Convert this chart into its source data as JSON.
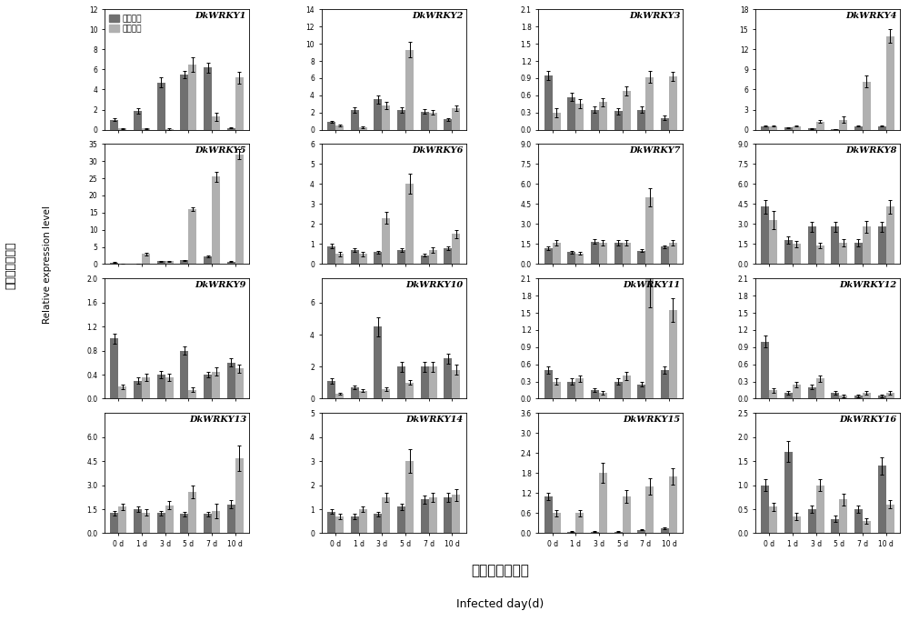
{
  "genes": [
    "DkWRKY1",
    "DkWRKY2",
    "DkWRKY3",
    "DkWRKY4",
    "DkWRKY5",
    "DkWRKY6",
    "DkWRKY7",
    "DkWRKY8",
    "DkWRKY9",
    "DkWRKY10",
    "DkWRKY11",
    "DkWRKY12",
    "DkWRKY13",
    "DkWRKY14",
    "DkWRKY15",
    "DkWRKY16"
  ],
  "days": [
    "0 d",
    "1 d",
    "3 d",
    "5 d",
    "7 d",
    "10 d"
  ],
  "color_dark": "#707070",
  "color_light": "#b0b0b0",
  "legend_label_dark": "抗病尖柿",
  "legend_label_light": "富平尖柿",
  "ylabel_cn": "实时表达量水平",
  "ylabel_en": "Relative expression level",
  "xlabel_cn": "侵染天数（天）",
  "xlabel_en": "Infected day(d)",
  "data": {
    "DkWRKY1": {
      "dark": [
        1.0,
        1.85,
        4.7,
        5.5,
        6.2,
        0.15
      ],
      "dark_err": [
        0.1,
        0.25,
        0.5,
        0.4,
        0.5,
        0.05
      ],
      "light": [
        0.1,
        0.1,
        0.05,
        6.5,
        1.3,
        5.2
      ],
      "light_err": [
        0.05,
        0.05,
        0.05,
        0.7,
        0.4,
        0.6
      ],
      "ylim": [
        0,
        12
      ],
      "yticks": [
        0,
        2,
        4,
        6,
        8,
        10,
        12
      ]
    },
    "DkWRKY2": {
      "dark": [
        0.9,
        2.3,
        3.5,
        2.3,
        2.1,
        1.2
      ],
      "dark_err": [
        0.1,
        0.3,
        0.5,
        0.3,
        0.25,
        0.15
      ],
      "light": [
        0.5,
        0.3,
        2.8,
        9.3,
        2.0,
        2.5
      ],
      "light_err": [
        0.1,
        0.1,
        0.4,
        0.9,
        0.3,
        0.3
      ],
      "ylim": [
        0,
        14
      ],
      "yticks": [
        0,
        2,
        4,
        6,
        8,
        10,
        12,
        14
      ]
    },
    "DkWRKY3": {
      "dark": [
        0.95,
        0.57,
        0.35,
        0.32,
        0.35,
        0.2
      ],
      "dark_err": [
        0.08,
        0.07,
        0.05,
        0.05,
        0.05,
        0.04
      ],
      "light": [
        0.3,
        0.45,
        0.48,
        0.68,
        0.92,
        0.93
      ],
      "light_err": [
        0.08,
        0.08,
        0.07,
        0.08,
        0.1,
        0.08
      ],
      "ylim": [
        0,
        2.1
      ],
      "yticks": [
        0.0,
        0.3,
        0.6,
        0.9,
        1.2,
        1.5,
        1.8,
        2.1
      ]
    },
    "DkWRKY4": {
      "dark": [
        0.5,
        0.3,
        0.15,
        0.1,
        0.5,
        0.5
      ],
      "dark_err": [
        0.08,
        0.05,
        0.03,
        0.03,
        0.08,
        0.08
      ],
      "light": [
        0.5,
        0.5,
        1.2,
        1.5,
        7.2,
        14.0
      ],
      "light_err": [
        0.08,
        0.08,
        0.2,
        0.5,
        0.9,
        1.0
      ],
      "ylim": [
        0,
        18
      ],
      "yticks": [
        0,
        3,
        6,
        9,
        12,
        15,
        18
      ]
    },
    "DkWRKY5": {
      "dark": [
        0.5,
        0.1,
        0.8,
        1.1,
        2.2,
        0.7
      ],
      "dark_err": [
        0.08,
        0.03,
        0.1,
        0.15,
        0.25,
        0.1
      ],
      "light": [
        0.0,
        3.0,
        0.8,
        16.0,
        25.5,
        32.0
      ],
      "light_err": [
        0.05,
        0.4,
        0.12,
        0.6,
        1.5,
        1.5
      ],
      "ylim": [
        0,
        35
      ],
      "yticks": [
        0,
        5,
        10,
        15,
        20,
        25,
        30,
        35
      ]
    },
    "DkWRKY6": {
      "dark": [
        0.9,
        0.7,
        0.6,
        0.7,
        0.45,
        0.8
      ],
      "dark_err": [
        0.1,
        0.1,
        0.08,
        0.08,
        0.06,
        0.08
      ],
      "light": [
        0.5,
        0.5,
        2.3,
        4.0,
        0.7,
        1.5
      ],
      "light_err": [
        0.1,
        0.1,
        0.3,
        0.5,
        0.15,
        0.2
      ],
      "ylim": [
        0,
        6
      ],
      "yticks": [
        0,
        1,
        2,
        3,
        4,
        5,
        6
      ]
    },
    "DkWRKY7": {
      "dark": [
        1.2,
        0.9,
        1.7,
        1.6,
        1.0,
        1.3
      ],
      "dark_err": [
        0.12,
        0.1,
        0.2,
        0.18,
        0.1,
        0.12
      ],
      "light": [
        1.6,
        0.8,
        1.6,
        1.6,
        5.0,
        1.6
      ],
      "light_err": [
        0.18,
        0.1,
        0.18,
        0.18,
        0.7,
        0.18
      ],
      "ylim": [
        0,
        9.0
      ],
      "yticks": [
        0.0,
        1.5,
        3.0,
        4.5,
        6.0,
        7.5,
        9.0
      ]
    },
    "DkWRKY8": {
      "dark": [
        4.3,
        1.8,
        2.8,
        2.8,
        1.6,
        2.8
      ],
      "dark_err": [
        0.5,
        0.25,
        0.35,
        0.35,
        0.25,
        0.35
      ],
      "light": [
        3.3,
        1.5,
        1.4,
        1.6,
        2.8,
        4.3
      ],
      "light_err": [
        0.7,
        0.25,
        0.2,
        0.25,
        0.45,
        0.5
      ],
      "ylim": [
        0,
        9.0
      ],
      "yticks": [
        0.0,
        1.5,
        3.0,
        4.5,
        6.0,
        7.5,
        9.0
      ]
    },
    "DkWRKY9": {
      "dark": [
        1.0,
        0.3,
        0.4,
        0.8,
        0.4,
        0.6
      ],
      "dark_err": [
        0.08,
        0.05,
        0.06,
        0.07,
        0.05,
        0.07
      ],
      "light": [
        0.2,
        0.35,
        0.35,
        0.15,
        0.45,
        0.5
      ],
      "light_err": [
        0.04,
        0.06,
        0.06,
        0.04,
        0.07,
        0.07
      ],
      "ylim": [
        0,
        2.0
      ],
      "yticks": [
        0.0,
        0.4,
        0.8,
        1.2,
        1.6,
        2.0
      ]
    },
    "DkWRKY10": {
      "dark": [
        1.1,
        0.7,
        4.5,
        2.0,
        2.0,
        2.5
      ],
      "dark_err": [
        0.15,
        0.1,
        0.6,
        0.3,
        0.3,
        0.3
      ],
      "light": [
        0.3,
        0.5,
        0.6,
        1.0,
        2.0,
        1.8
      ],
      "light_err": [
        0.07,
        0.1,
        0.1,
        0.15,
        0.3,
        0.3
      ],
      "ylim": [
        0,
        7.5
      ],
      "yticks": [
        0,
        2,
        4,
        6
      ]
    },
    "DkWRKY11": {
      "dark": [
        0.5,
        0.3,
        0.15,
        0.3,
        0.25,
        0.5
      ],
      "dark_err": [
        0.07,
        0.05,
        0.03,
        0.05,
        0.04,
        0.07
      ],
      "light": [
        0.3,
        0.35,
        0.1,
        0.4,
        2.1,
        1.55
      ],
      "light_err": [
        0.06,
        0.06,
        0.03,
        0.07,
        0.5,
        0.2
      ],
      "ylim": [
        0,
        2.1
      ],
      "yticks": [
        0.0,
        0.3,
        0.6,
        0.9,
        1.2,
        1.5,
        1.8,
        2.1
      ]
    },
    "DkWRKY12": {
      "dark": [
        1.0,
        0.1,
        0.2,
        0.1,
        0.05,
        0.05
      ],
      "dark_err": [
        0.1,
        0.03,
        0.04,
        0.03,
        0.02,
        0.02
      ],
      "light": [
        0.15,
        0.25,
        0.35,
        0.05,
        0.1,
        0.1
      ],
      "light_err": [
        0.04,
        0.05,
        0.06,
        0.02,
        0.03,
        0.03
      ],
      "ylim": [
        0,
        2.1
      ],
      "yticks": [
        0.0,
        0.3,
        0.6,
        0.9,
        1.2,
        1.5,
        1.8,
        2.1
      ]
    },
    "DkWRKY13": {
      "dark": [
        1.25,
        1.5,
        1.25,
        1.2,
        1.2,
        1.8
      ],
      "dark_err": [
        0.15,
        0.18,
        0.15,
        0.15,
        0.15,
        0.25
      ],
      "light": [
        1.65,
        1.3,
        1.75,
        2.6,
        1.4,
        4.7
      ],
      "light_err": [
        0.18,
        0.18,
        0.25,
        0.4,
        0.45,
        0.8
      ],
      "ylim": [
        0,
        7.5
      ],
      "yticks": [
        0.0,
        1.5,
        3.0,
        4.5,
        6.0
      ]
    },
    "DkWRKY14": {
      "dark": [
        0.9,
        0.7,
        0.8,
        1.1,
        1.4,
        1.5
      ],
      "dark_err": [
        0.1,
        0.1,
        0.1,
        0.12,
        0.18,
        0.18
      ],
      "light": [
        0.7,
        1.0,
        1.5,
        3.0,
        1.5,
        1.6
      ],
      "light_err": [
        0.1,
        0.12,
        0.18,
        0.5,
        0.2,
        0.25
      ],
      "ylim": [
        0,
        5
      ],
      "yticks": [
        0,
        1,
        2,
        3,
        4,
        5
      ]
    },
    "DkWRKY15": {
      "dark": [
        1.1,
        0.05,
        0.05,
        0.05,
        0.1,
        0.15
      ],
      "dark_err": [
        0.12,
        0.01,
        0.01,
        0.01,
        0.02,
        0.03
      ],
      "light": [
        0.6,
        0.6,
        1.8,
        1.1,
        1.4,
        1.7
      ],
      "light_err": [
        0.1,
        0.1,
        0.3,
        0.2,
        0.25,
        0.25
      ],
      "ylim": [
        0,
        3.6
      ],
      "yticks": [
        0.0,
        0.6,
        1.2,
        1.8,
        2.4,
        3.0,
        3.6
      ]
    },
    "DkWRKY16": {
      "dark": [
        1.0,
        1.7,
        0.5,
        0.3,
        0.5,
        1.4
      ],
      "dark_err": [
        0.12,
        0.22,
        0.08,
        0.06,
        0.08,
        0.18
      ],
      "light": [
        0.55,
        0.35,
        1.0,
        0.7,
        0.25,
        0.6
      ],
      "light_err": [
        0.08,
        0.07,
        0.12,
        0.12,
        0.06,
        0.08
      ],
      "ylim": [
        0,
        2.5
      ],
      "yticks": [
        0.0,
        0.5,
        1.0,
        1.5,
        2.0,
        2.5
      ]
    }
  }
}
